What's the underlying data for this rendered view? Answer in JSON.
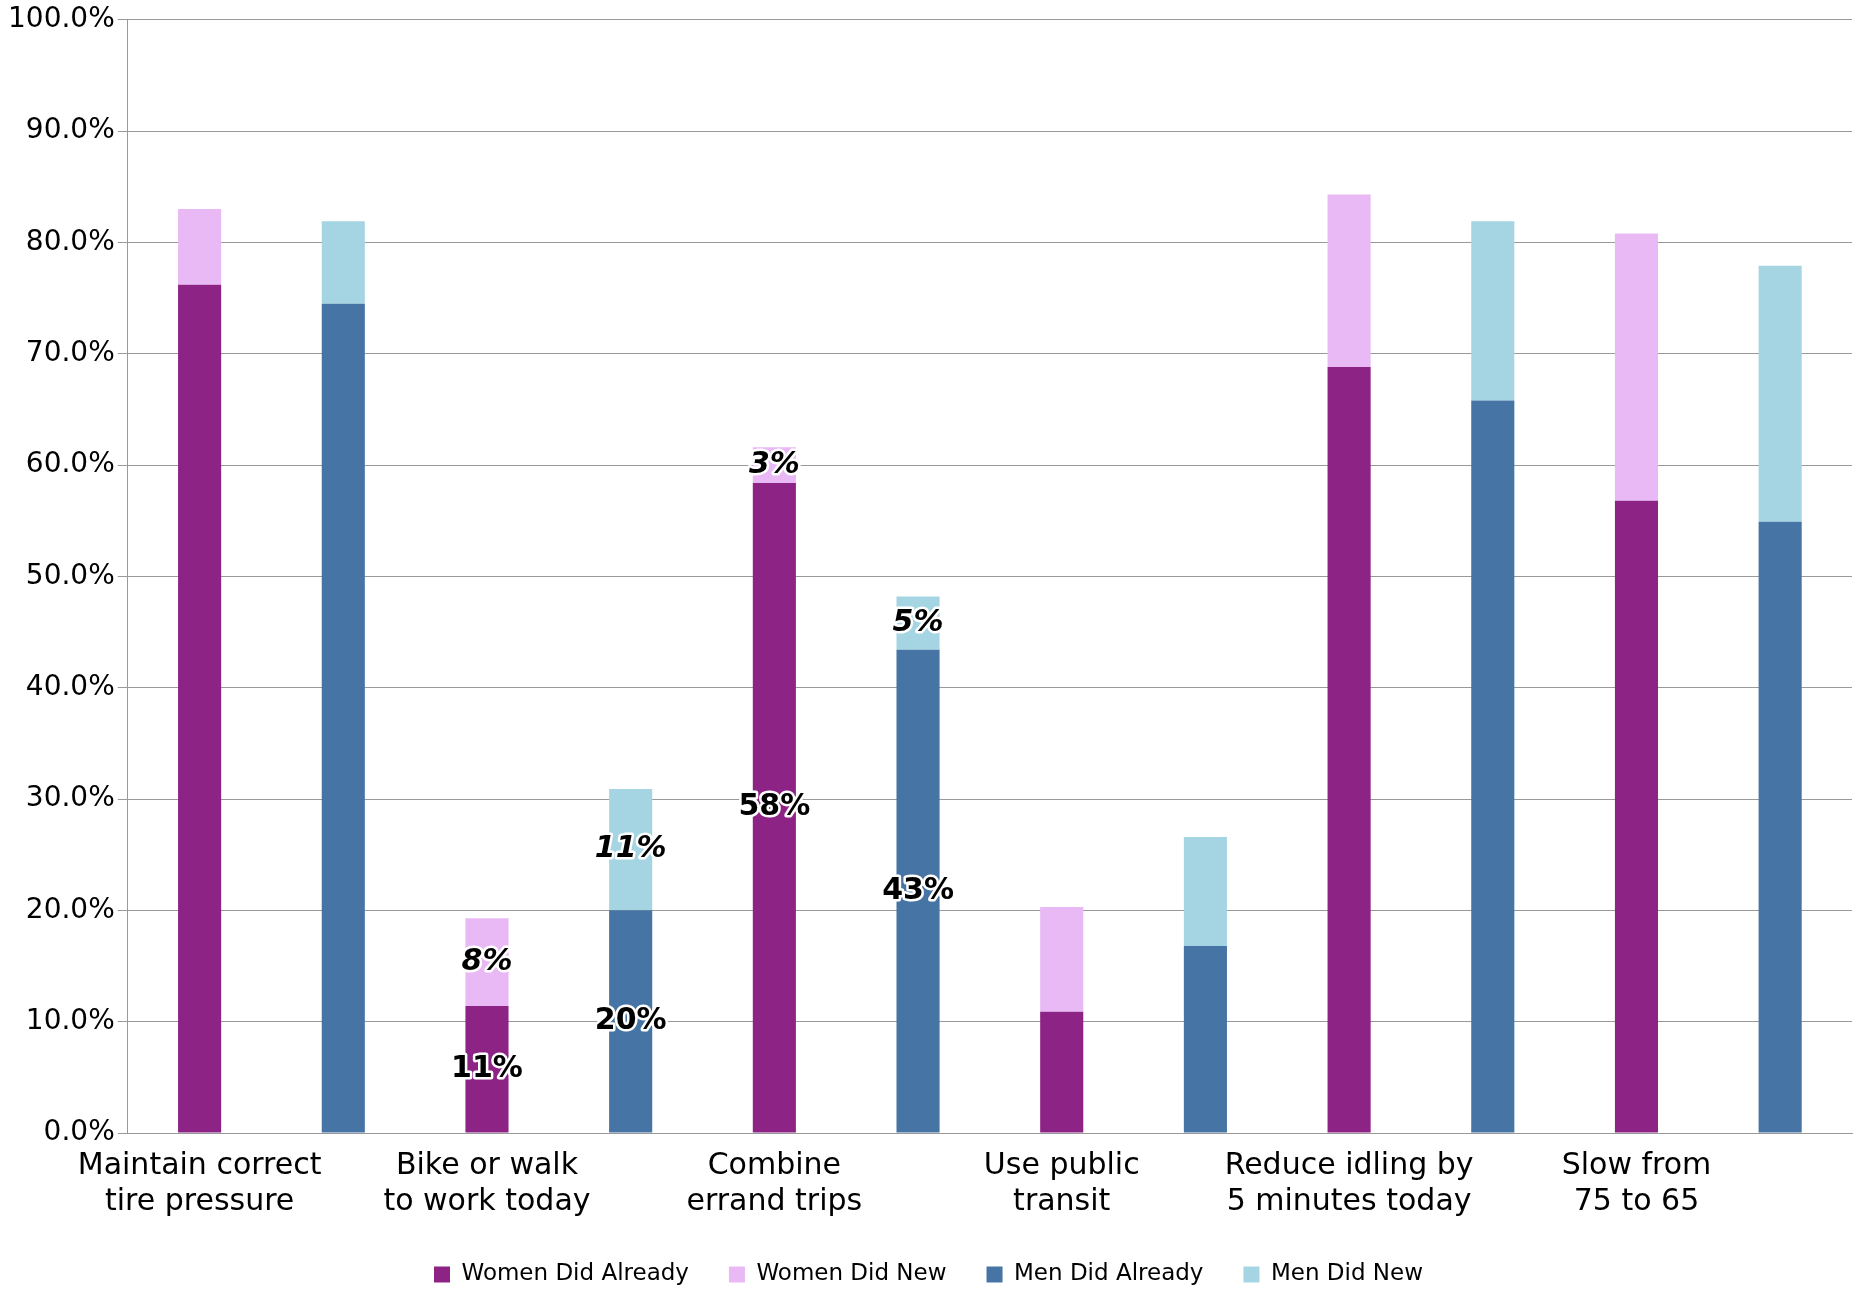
{
  "chart_data": {
    "type": "bar",
    "stacked": true,
    "categories": [
      "Maintain correct tire pressure",
      null,
      "Bike or walk to work today",
      null,
      "Combine errand trips",
      null,
      "Use public transit",
      null,
      "Reduce idling by 5 minutes today",
      null,
      "Slow from 75 to 65",
      null
    ],
    "series": [
      {
        "name": "Women Did Already",
        "color": "#8e2386",
        "values": [
          76.2,
          null,
          11.4,
          null,
          58.4,
          null,
          10.9,
          null,
          68.8,
          null,
          56.8,
          null
        ],
        "value_labels": [
          null,
          null,
          "11%",
          null,
          "58%",
          null,
          null,
          null,
          null,
          null,
          null,
          null
        ]
      },
      {
        "name": "Women Did New",
        "color": "#e9b9f5",
        "values": [
          6.8,
          null,
          7.9,
          null,
          3.2,
          null,
          9.4,
          null,
          15.5,
          null,
          24.0,
          null
        ],
        "value_labels": [
          null,
          null,
          "8%",
          null,
          "3%",
          null,
          null,
          null,
          null,
          null,
          null,
          null
        ]
      },
      {
        "name": "Men Did Already",
        "color": "#4674a5",
        "values": [
          null,
          74.5,
          null,
          20.0,
          null,
          43.4,
          null,
          16.8,
          null,
          65.8,
          null,
          54.9
        ],
        "value_labels": [
          null,
          null,
          null,
          "20%",
          null,
          "43%",
          null,
          null,
          null,
          null,
          null,
          null
        ]
      },
      {
        "name": "Men Did New",
        "color": "#a5d5e3",
        "values": [
          null,
          7.4,
          null,
          10.9,
          null,
          4.8,
          null,
          9.8,
          null,
          16.1,
          null,
          23.0
        ],
        "value_labels": [
          null,
          null,
          null,
          "11%",
          null,
          "5%",
          null,
          null,
          null,
          null,
          null,
          null
        ]
      }
    ],
    "ylim": [
      0,
      100
    ],
    "yticks": [
      {
        "value": 0,
        "label": "0.0%"
      },
      {
        "value": 10,
        "label": "10.0%"
      },
      {
        "value": 20,
        "label": "20.0%"
      },
      {
        "value": 30,
        "label": "30.0%"
      },
      {
        "value": 40,
        "label": "40.0%"
      },
      {
        "value": 50,
        "label": "50.0%"
      },
      {
        "value": 60,
        "label": "60.0%"
      },
      {
        "value": 70,
        "label": "70.0%"
      },
      {
        "value": 80,
        "label": "80.0%"
      },
      {
        "value": 90,
        "label": "90.0%"
      },
      {
        "value": 100,
        "label": "100.0%"
      }
    ],
    "grid": "y",
    "legend": "bottom"
  }
}
